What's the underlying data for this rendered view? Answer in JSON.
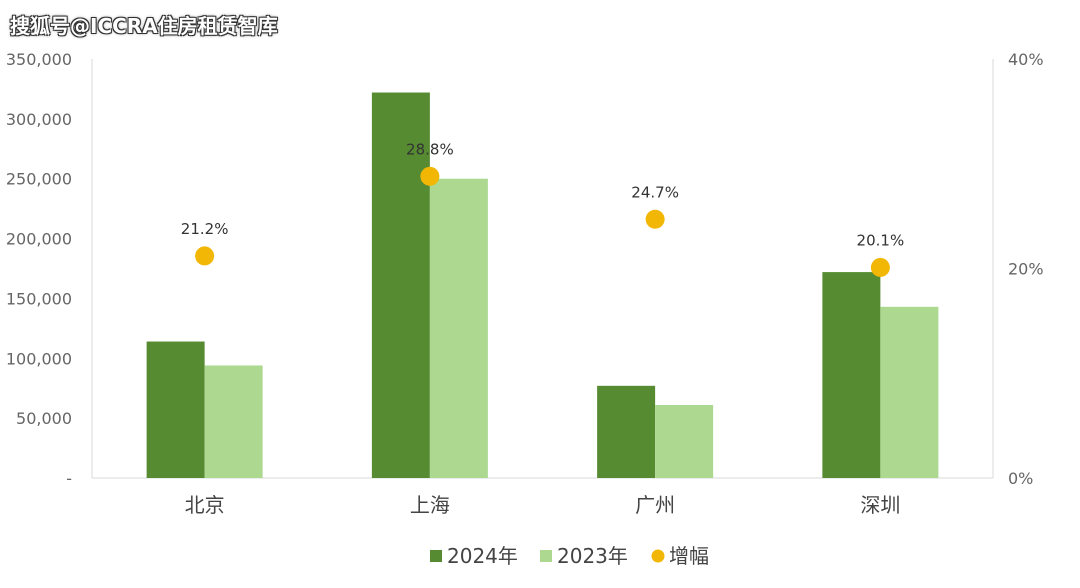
{
  "watermark": "搜狐号@ICCRA住房租赁智库",
  "chart_data": {
    "type": "bar",
    "categories": [
      "北京",
      "上海",
      "广州",
      "深圳"
    ],
    "series": [
      {
        "name": "2024年",
        "kind": "bar",
        "axis": "left",
        "color": "#568b32",
        "values": [
          114000,
          322000,
          77000,
          172000
        ]
      },
      {
        "name": "2023年",
        "kind": "bar",
        "axis": "left",
        "color": "#acd890",
        "values": [
          94000,
          250000,
          61000,
          143000
        ]
      },
      {
        "name": "增幅",
        "kind": "scatter",
        "axis": "right",
        "color": "#f2b705",
        "values": [
          21.2,
          28.8,
          24.7,
          20.1
        ]
      }
    ],
    "data_labels": [
      "21.2%",
      "28.8%",
      "24.7%",
      "20.1%"
    ],
    "y_left": {
      "min": 0,
      "max": 350000,
      "ticks": [
        "-",
        "50,000",
        "100,000",
        "150,000",
        "200,000",
        "250,000",
        "300,000",
        "350,000"
      ]
    },
    "y_right": {
      "min": 0,
      "max": 40,
      "ticks": [
        "0%",
        "20%",
        "40%"
      ]
    },
    "grid": false,
    "legend_position": "bottom"
  }
}
